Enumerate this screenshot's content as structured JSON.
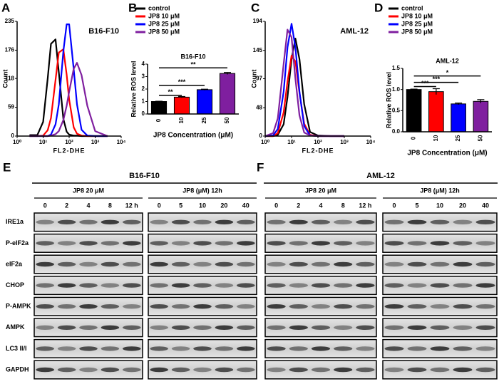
{
  "chart_data": [
    {
      "type": "line",
      "label": "A",
      "annotation": "B16-F10",
      "xlabel": "FL2-DHE",
      "ylabel": "Count",
      "xscale": "log",
      "x": [
        3,
        6,
        10,
        15,
        20,
        30,
        40,
        60,
        80,
        100,
        150,
        200,
        300,
        500,
        1000,
        3000
      ],
      "xlim": [
        1,
        10000
      ],
      "xticks": [
        {
          "value": 1,
          "label": "10⁰"
        },
        {
          "value": 10,
          "label": "10¹"
        },
        {
          "value": 100,
          "label": "10²"
        },
        {
          "value": 1000,
          "label": "10³"
        },
        {
          "value": 10000,
          "label": "10⁴"
        }
      ],
      "ylim": [
        0,
        235
      ],
      "yticks": [
        0,
        59,
        118,
        176,
        235
      ],
      "series": [
        {
          "name": "control",
          "color": "#000000",
          "values": [
            2,
            2,
            29,
            118,
            189,
            198,
            131,
            35,
            9,
            3,
            1,
            1,
            0,
            0,
            0,
            0
          ]
        },
        {
          "name": "JP8 10 μM",
          "color": "#ff0000",
          "values": [
            0,
            0,
            1,
            12,
            37,
            115,
            171,
            178,
            126,
            75,
            18,
            5,
            1,
            0,
            0,
            0
          ]
        },
        {
          "name": "JP8 25 μM",
          "color": "#0000ff",
          "values": [
            0,
            0,
            0,
            0,
            3,
            24,
            65,
            174,
            229,
            229,
            137,
            65,
            13,
            1,
            0,
            0
          ]
        },
        {
          "name": "JP8 50 μM",
          "color": "#7f1f9f",
          "values": [
            0,
            0,
            0,
            0,
            1,
            4,
            10,
            33,
            62,
            91,
            138,
            150,
            125,
            62,
            10,
            0
          ]
        }
      ]
    },
    {
      "type": "bar",
      "label": "B",
      "title": "B16-F10",
      "xlabel": "JP8 Concentration (μM)",
      "ylabel": "Relative ROS level",
      "categories": [
        "0",
        "10",
        "25",
        "50"
      ],
      "values": [
        1.0,
        1.35,
        1.95,
        3.25
      ],
      "errors": [
        0.02,
        0.05,
        0.04,
        0.08
      ],
      "colors": [
        "#000000",
        "#ff0000",
        "#0000ff",
        "#7f1f9f"
      ],
      "ylim": [
        0,
        4
      ],
      "yticks": [
        0,
        1,
        2,
        3,
        4
      ],
      "annotations": [
        {
          "text": "**",
          "between": [
            "0",
            "50"
          ],
          "y": 3.7
        },
        {
          "text": "***",
          "between": [
            "0",
            "25"
          ],
          "y": 2.3
        },
        {
          "text": "**",
          "between": [
            "0",
            "10"
          ],
          "y": 1.5
        }
      ]
    },
    {
      "type": "line",
      "label": "C",
      "annotation": "AML-12",
      "xlabel": "FL2-DHE",
      "ylabel": "Count",
      "xscale": "log",
      "x": [
        1,
        2,
        3,
        5,
        7,
        10,
        14,
        20,
        30,
        50,
        100,
        300,
        1000
      ],
      "xlim": [
        1,
        10000
      ],
      "xticks": [
        {
          "value": 1,
          "label": "10⁰"
        },
        {
          "value": 10,
          "label": "10¹"
        },
        {
          "value": 100,
          "label": "10²"
        },
        {
          "value": 1000,
          "label": "10³"
        },
        {
          "value": 10000,
          "label": "10⁴"
        }
      ],
      "ylim": [
        0,
        194
      ],
      "yticks": [
        0,
        48,
        97,
        145,
        194
      ],
      "series": [
        {
          "name": "control",
          "color": "#000000",
          "values": [
            0,
            0,
            2,
            20,
            66,
            130,
            165,
            130,
            54,
            7,
            1,
            0,
            0
          ]
        },
        {
          "name": "JP8 10 μM",
          "color": "#ff0000",
          "values": [
            0,
            0,
            5,
            40,
            92,
            136,
            126,
            73,
            21,
            2,
            0,
            0,
            0
          ]
        },
        {
          "name": "JP8 25 μM",
          "color": "#0000ff",
          "values": [
            0,
            1,
            12,
            75,
            150,
            190,
            150,
            75,
            17,
            1,
            0,
            0,
            0
          ]
        },
        {
          "name": "JP8 50 μM",
          "color": "#7f1f9f",
          "values": [
            0,
            5,
            30,
            122,
            180,
            167,
            97,
            35,
            6,
            1,
            0,
            0,
            0
          ]
        }
      ]
    },
    {
      "type": "bar",
      "label": "D",
      "title": "AML-12",
      "xlabel": "JP8 Concentration (μM)",
      "ylabel": "Relative ROS level",
      "categories": [
        "0",
        "10",
        "25",
        "50"
      ],
      "values": [
        1.0,
        0.95,
        0.66,
        0.72
      ],
      "errors": [
        0.01,
        0.07,
        0.02,
        0.04
      ],
      "colors": [
        "#000000",
        "#ff0000",
        "#0000ff",
        "#7f1f9f"
      ],
      "ylim": [
        0,
        1.5
      ],
      "yticks": [
        {
          "value": 0,
          "label": "0.0"
        },
        0.5,
        {
          "value": 1,
          "label": "1.0"
        },
        1.5
      ],
      "annotations": [
        {
          "text": "*",
          "between": [
            "0",
            "50"
          ],
          "y": 1.32
        },
        {
          "text": "***",
          "between": [
            "0",
            "25"
          ],
          "y": 1.17
        },
        {
          "text": "***",
          "between": [
            "0",
            "10"
          ],
          "y": 1.07
        }
      ]
    }
  ],
  "blots": [
    {
      "label": "E",
      "title": "B16-F10",
      "groups": [
        {
          "header": "JP8 20 μM",
          "lanes": [
            "0",
            "2",
            "4",
            "8",
            "12 h"
          ]
        },
        {
          "header": "JP8 (μM)  12h",
          "lanes": [
            "0",
            "5",
            "10",
            "20",
            "40"
          ]
        }
      ],
      "rows": [
        "IRE1a",
        "P-eIF2a",
        "eIF2a",
        "CHOP",
        "P-AMPK",
        "AMPK",
        "LC3 II/I",
        "GAPDH"
      ]
    },
    {
      "label": "F",
      "title": "AML-12",
      "groups": [
        {
          "header": "JP8 20 μM",
          "lanes": [
            "0",
            "2",
            "4",
            "8",
            "12 h"
          ]
        },
        {
          "header": "JP8 (μM)  12h",
          "lanes": [
            "0",
            "5",
            "10",
            "20",
            "40"
          ]
        }
      ]
    }
  ]
}
